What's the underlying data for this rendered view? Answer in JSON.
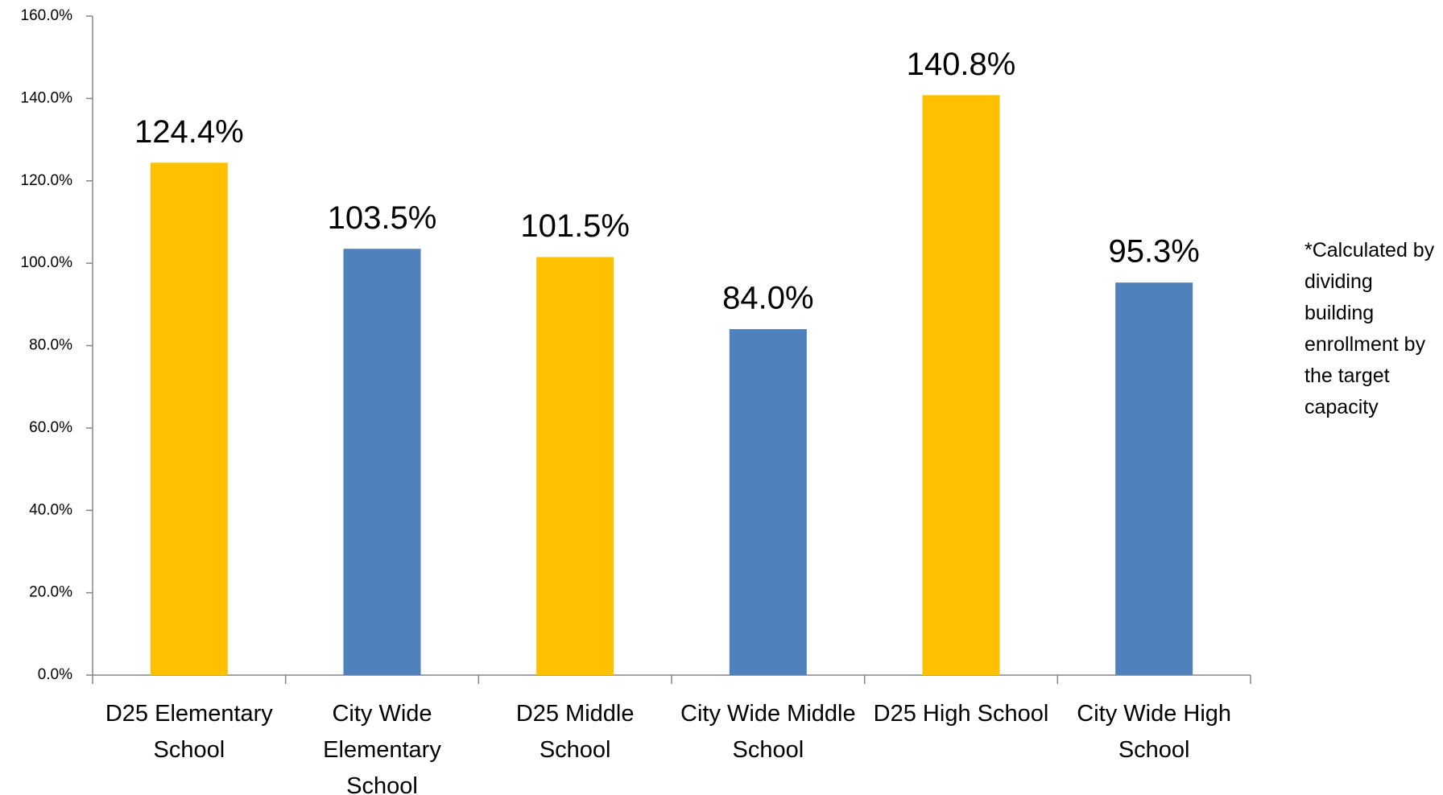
{
  "chart_data": {
    "type": "bar",
    "categories": [
      "D25 Elementary School",
      "City Wide Elementary School",
      "D25 Middle School",
      "City Wide Middle School",
      "D25 High School",
      "City Wide High School"
    ],
    "values": [
      124.4,
      103.5,
      101.5,
      84.0,
      140.8,
      95.3
    ],
    "value_labels": [
      "124.4%",
      "103.5%",
      "101.5%",
      "84.0%",
      "140.8%",
      "95.3%"
    ],
    "colors": [
      "#FFC000",
      "#4F81BD",
      "#FFC000",
      "#4F81BD",
      "#FFC000",
      "#4F81BD"
    ],
    "ylim": [
      0,
      160
    ],
    "yticks": [
      {
        "value": 0,
        "label": "0.0%"
      },
      {
        "value": 20,
        "label": "20.0%"
      },
      {
        "value": 40,
        "label": "40.0%"
      },
      {
        "value": 60,
        "label": "60.0%"
      },
      {
        "value": 80,
        "label": "80.0%"
      },
      {
        "value": 100,
        "label": "100.0%"
      },
      {
        "value": 120,
        "label": "120.0%"
      },
      {
        "value": 140,
        "label": "140.0%"
      },
      {
        "value": 160,
        "label": "160.0%"
      }
    ],
    "grid": false,
    "annotation": "*Calculated by dividing building enrollment by the target capacity"
  }
}
